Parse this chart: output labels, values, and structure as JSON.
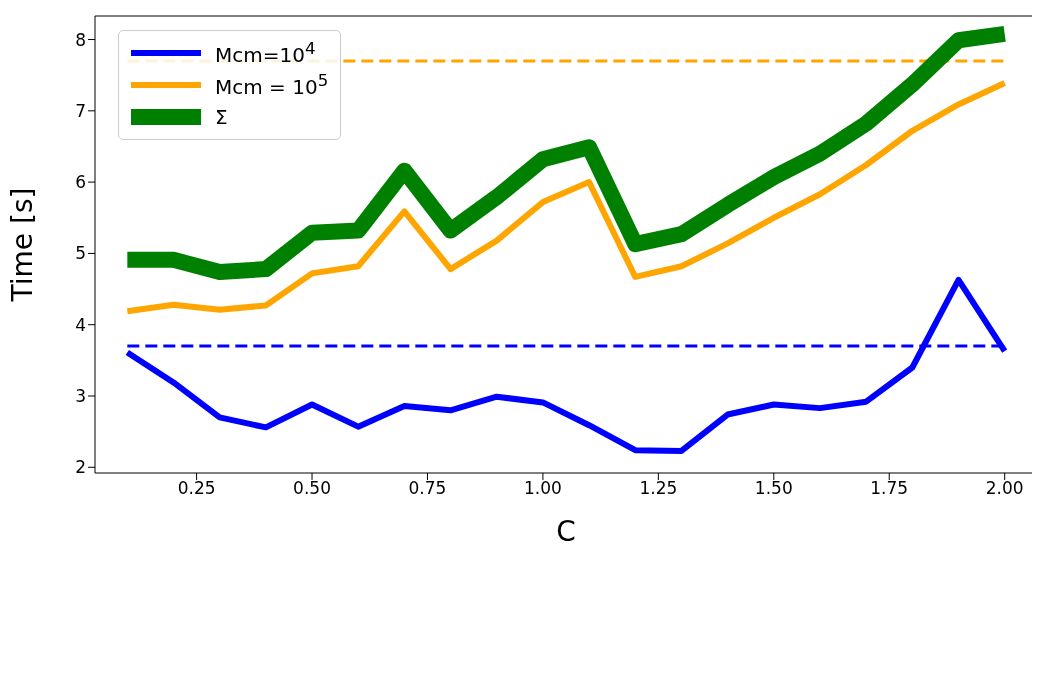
{
  "chart_data": {
    "type": "line",
    "xlabel": "C",
    "ylabel": "Time [s]",
    "x": [
      0.1,
      0.2,
      0.3,
      0.4,
      0.5,
      0.6,
      0.7,
      0.8,
      0.9,
      1.0,
      1.1,
      1.2,
      1.3,
      1.4,
      1.5,
      1.6,
      1.7,
      1.8,
      1.9,
      2.0
    ],
    "series": [
      {
        "name": "Mcm=10$^{4}$",
        "color": "#0000ff",
        "values": [
          3.61,
          3.19,
          2.7,
          2.56,
          2.88,
          2.57,
          2.86,
          2.8,
          2.99,
          2.91,
          2.59,
          2.24,
          2.23,
          2.74,
          2.88,
          2.83,
          2.92,
          3.4,
          4.63,
          3.63
        ]
      },
      {
        "name": "Mcm = 10$^{5}$",
        "color": "#ffa500",
        "values": [
          4.19,
          4.28,
          4.21,
          4.27,
          4.72,
          4.82,
          5.59,
          4.78,
          5.18,
          5.72,
          6.0,
          4.67,
          4.82,
          5.14,
          5.5,
          5.83,
          6.24,
          6.72,
          7.09,
          7.39
        ]
      },
      {
        "name": "Σ",
        "color": "#008000",
        "values": [
          4.91,
          4.91,
          4.74,
          4.78,
          5.29,
          5.32,
          6.16,
          5.32,
          5.79,
          6.32,
          6.49,
          5.13,
          5.27,
          5.68,
          6.07,
          6.4,
          6.82,
          7.37,
          7.99,
          8.08
        ]
      }
    ],
    "ref_lines": [
      {
        "axis": "y",
        "value": 3.7,
        "color": "#0000ff",
        "line_style": "dashed"
      },
      {
        "axis": "y",
        "value": 7.7,
        "color": "#ffa500",
        "line_style": "dashed"
      }
    ],
    "xlim": [
      0.03,
      2.07
    ],
    "ylim": [
      1.92,
      8.33
    ],
    "xticks": [
      {
        "value": 0.25,
        "label": "0.25"
      },
      {
        "value": 0.5,
        "label": "0.50"
      },
      {
        "value": 0.75,
        "label": "0.75"
      },
      {
        "value": 1.0,
        "label": "1.00"
      },
      {
        "value": 1.25,
        "label": "1.25"
      },
      {
        "value": 1.5,
        "label": "1.50"
      },
      {
        "value": 1.75,
        "label": "1.75"
      },
      {
        "value": 2.0,
        "label": "2.00"
      }
    ],
    "yticks": [
      2,
      3,
      4,
      5,
      6,
      7,
      8
    ],
    "legend": "top left",
    "grid": false,
    "marker": "none",
    "line_style": "solid"
  }
}
